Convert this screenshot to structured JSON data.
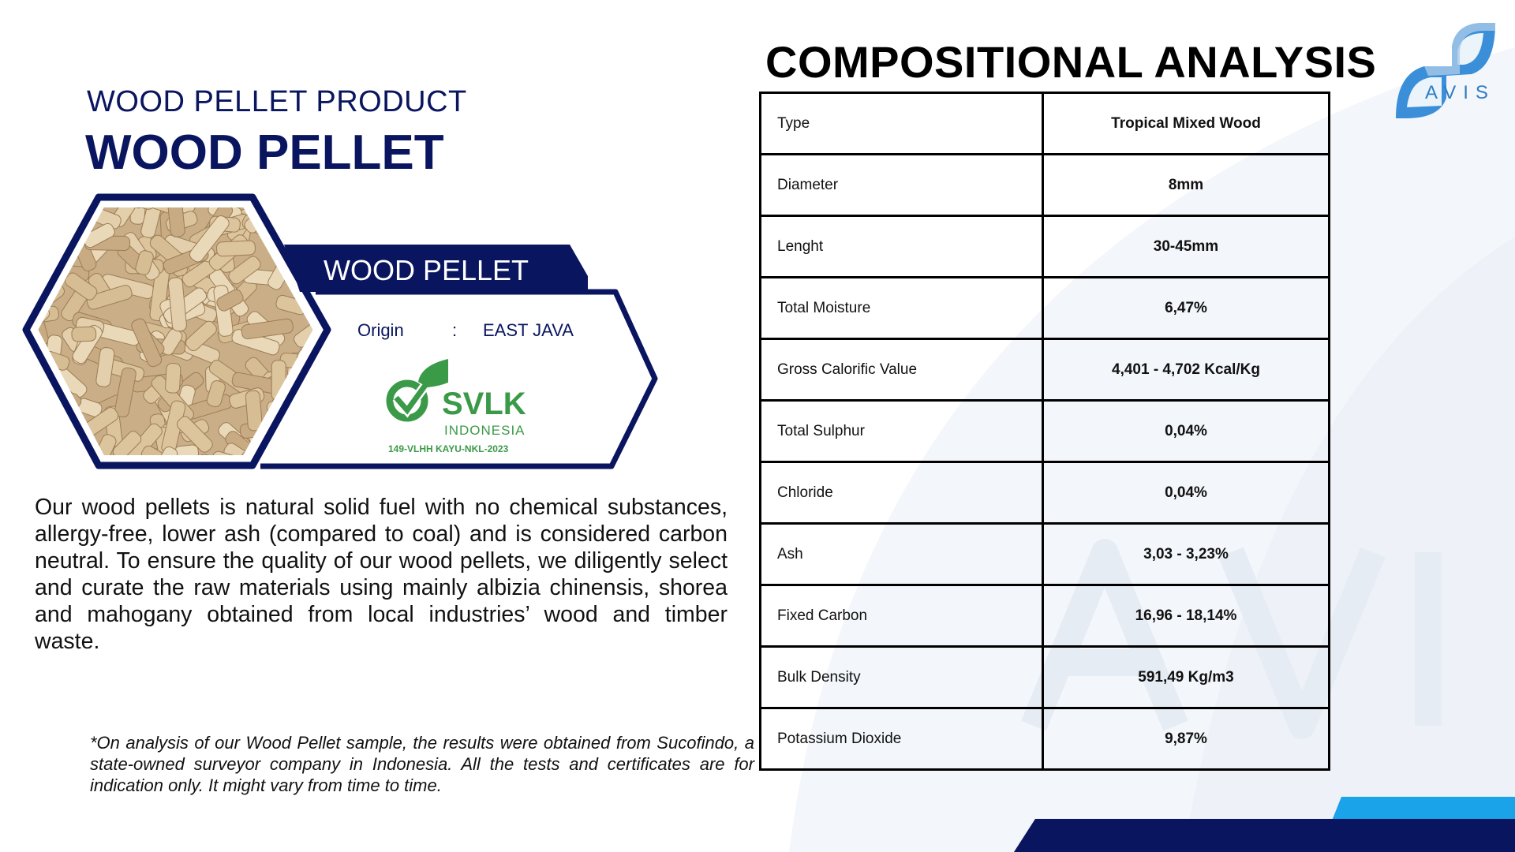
{
  "product": {
    "subtitle": "WOOD PELLET PRODUCT",
    "title": "WOOD PELLET",
    "banner": "WOOD PELLET",
    "origin_label": "Origin",
    "origin_sep": ":",
    "origin_value": "EAST JAVA",
    "certificate": {
      "name": "SVLK",
      "country": "INDONESIA",
      "code": "149-VLHH KAYU-NKL-2023"
    },
    "description": "Our  wood pellets is natural solid fuel with no chemical substances, allergy-free, lower ash (compared to coal) and is considered carbon neutral. To ensure  the  quality  of  our wood  pellets,  we diligently select and curate the raw materials using  mainly  albizia  chinensis,  shorea  and mahogany obtained from local industries’ wood and timber waste.",
    "footnote": "*On analysis of our Wood Pellet sample, the results  were  obtained  from Sucofindo,  a state-owned surveyor company in Indonesia. All the tests and certificates are for indication only. It might vary from time to time."
  },
  "analysis": {
    "title": "COMPOSITIONAL ANALYSIS",
    "rows": [
      {
        "label": "Type",
        "value": "Tropical Mixed Wood"
      },
      {
        "label": "Diameter",
        "value": "8mm"
      },
      {
        "label": "Lenght",
        "value": "30-45mm"
      },
      {
        "label": "Total Moisture",
        "value": "6,47%"
      },
      {
        "label": "Gross Calorific Value",
        "value": "4,401 - 4,702 Kcal/Kg"
      },
      {
        "label": "Total Sulphur",
        "value": "0,04%"
      },
      {
        "label": "Chloride",
        "value": "0,04%"
      },
      {
        "label": "Ash",
        "value": "3,03 - 3,23%"
      },
      {
        "label": "Fixed Carbon",
        "value": "16,96 - 18,14%"
      },
      {
        "label": "Bulk Density",
        "value": "591,49 Kg/m3"
      },
      {
        "label": "Potassium Dioxide",
        "value": "9,87%"
      }
    ]
  },
  "logo": {
    "text": "AVIS",
    "watermark": "AVIS"
  },
  "colors": {
    "navy": "#0a1560",
    "green": "#3a9a48",
    "logo_blue": "#2f7cc4",
    "accent_blue": "#1aa3e8"
  }
}
